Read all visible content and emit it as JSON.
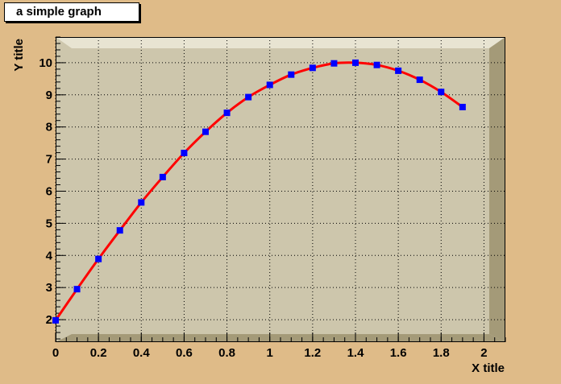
{
  "chart_data": {
    "type": "line",
    "title": "a simple graph",
    "xlabel": "X title",
    "ylabel": "Y title",
    "xlim": [
      0,
      2.1
    ],
    "ylim": [
      1.3,
      10.8
    ],
    "grid": true,
    "x_ticks": [
      0,
      0.2,
      0.4,
      0.6,
      0.8,
      1,
      1.2,
      1.4,
      1.6,
      1.8,
      2
    ],
    "x_tick_labels": [
      "0",
      "0.2",
      "0.4",
      "0.6",
      "0.8",
      "1",
      "1.2",
      "1.4",
      "1.6",
      "1.8",
      "2"
    ],
    "y_ticks": [
      2,
      3,
      4,
      5,
      6,
      7,
      8,
      9,
      10
    ],
    "y_tick_labels": [
      "2",
      "3",
      "4",
      "5",
      "6",
      "7",
      "8",
      "9",
      "10"
    ],
    "series": [
      {
        "x": [
          0,
          0.1,
          0.2,
          0.3,
          0.4,
          0.5,
          0.6,
          0.7,
          0.8,
          0.9,
          1.0,
          1.1,
          1.2,
          1.3,
          1.4,
          1.5,
          1.6,
          1.7,
          1.8,
          1.9
        ],
        "y": [
          1.98,
          2.95,
          3.89,
          4.78,
          5.65,
          6.44,
          7.19,
          7.85,
          8.44,
          8.93,
          9.31,
          9.63,
          9.84,
          9.98,
          10.0,
          9.93,
          9.75,
          9.47,
          9.09,
          8.62
        ],
        "line_color": "#ff0000",
        "marker_color": "#0000ff",
        "marker": "square"
      }
    ]
  },
  "colors": {
    "canvas_bg": "#dfbb88",
    "frame_bg": "#cdc6ac",
    "frame_light": "#e8e4d2",
    "frame_dark": "#a49a78",
    "grid": "#000000"
  }
}
